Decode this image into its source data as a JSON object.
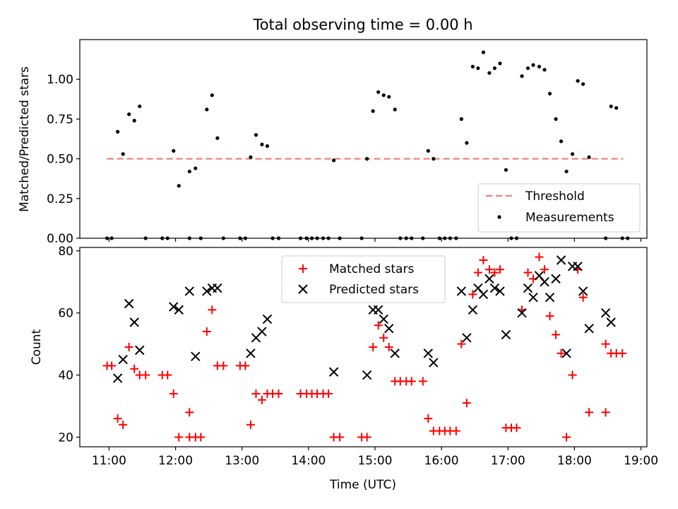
{
  "figure": {
    "title": "Total observing time = 0.00 h"
  },
  "chart_data": [
    {
      "type": "scatter",
      "ylabel": "Matched/Predicted stars",
      "xlabel": "",
      "xlim": [
        10.56,
        19.09
      ],
      "ylim": [
        0,
        1.25
      ],
      "x_ticks": [
        11,
        12,
        13,
        14,
        15,
        16,
        17,
        18,
        19
      ],
      "y_ticks": [
        0.0,
        0.25,
        0.5,
        0.75,
        1.0
      ],
      "y_tick_labels": [
        "0.00",
        "0.25",
        "0.50",
        "0.75",
        "1.00"
      ],
      "threshold": {
        "name": "Threshold",
        "value": 0.5,
        "x_range": [
          10.97,
          18.73
        ],
        "color": "#f08080"
      },
      "legend": {
        "placement": "lower-right",
        "entries": [
          "Threshold",
          "Measurements"
        ]
      },
      "series": [
        {
          "name": "Measurements",
          "marker": "dot",
          "color": "#000000",
          "points": [
            [
              10.97,
              0.0
            ],
            [
              11.04,
              0.0
            ],
            [
              11.13,
              0.67
            ],
            [
              11.21,
              0.53
            ],
            [
              11.3,
              0.78
            ],
            [
              11.38,
              0.74
            ],
            [
              11.46,
              0.83
            ],
            [
              11.55,
              0.0
            ],
            [
              11.8,
              0.0
            ],
            [
              11.88,
              0.0
            ],
            [
              11.97,
              0.55
            ],
            [
              12.05,
              0.33
            ],
            [
              12.21,
              0.42
            ],
            [
              12.3,
              0.44
            ],
            [
              12.21,
              0.0
            ],
            [
              12.38,
              0.0
            ],
            [
              12.47,
              0.81
            ],
            [
              12.55,
              0.9
            ],
            [
              12.63,
              0.63
            ],
            [
              12.72,
              0.0
            ],
            [
              12.97,
              0.0
            ],
            [
              13.05,
              0.0
            ],
            [
              13.13,
              0.51
            ],
            [
              13.21,
              0.65
            ],
            [
              13.3,
              0.59
            ],
            [
              13.38,
              0.58
            ],
            [
              13.46,
              0.0
            ],
            [
              13.55,
              0.0
            ],
            [
              13.88,
              0.0
            ],
            [
              13.97,
              0.0
            ],
            [
              14.05,
              0.0
            ],
            [
              14.13,
              0.0
            ],
            [
              14.22,
              0.0
            ],
            [
              14.3,
              0.0
            ],
            [
              14.38,
              0.49
            ],
            [
              14.47,
              0.0
            ],
            [
              14.8,
              0.0
            ],
            [
              14.88,
              0.5
            ],
            [
              14.97,
              0.8
            ],
            [
              15.05,
              0.92
            ],
            [
              15.13,
              0.9
            ],
            [
              15.21,
              0.89
            ],
            [
              15.3,
              0.81
            ],
            [
              15.38,
              0.0
            ],
            [
              15.47,
              0.0
            ],
            [
              15.55,
              0.0
            ],
            [
              15.72,
              0.0
            ],
            [
              15.8,
              0.55
            ],
            [
              15.88,
              0.5
            ],
            [
              15.97,
              0.0
            ],
            [
              16.05,
              0.0
            ],
            [
              16.13,
              0.0
            ],
            [
              16.22,
              0.0
            ],
            [
              16.3,
              0.75
            ],
            [
              16.38,
              0.6
            ],
            [
              16.47,
              1.08
            ],
            [
              16.55,
              1.07
            ],
            [
              16.63,
              1.17
            ],
            [
              16.72,
              1.04
            ],
            [
              16.8,
              1.07
            ],
            [
              16.88,
              1.1
            ],
            [
              16.97,
              0.43
            ],
            [
              17.05,
              0.0
            ],
            [
              17.13,
              0.0
            ],
            [
              17.21,
              1.02
            ],
            [
              17.3,
              1.07
            ],
            [
              17.38,
              1.09
            ],
            [
              17.47,
              1.08
            ],
            [
              17.55,
              1.06
            ],
            [
              17.63,
              0.91
            ],
            [
              17.72,
              0.75
            ],
            [
              17.8,
              0.61
            ],
            [
              17.88,
              0.42
            ],
            [
              17.97,
              0.53
            ],
            [
              18.05,
              0.99
            ],
            [
              18.13,
              0.97
            ],
            [
              18.22,
              0.51
            ],
            [
              18.47,
              0.0
            ],
            [
              18.55,
              0.83
            ],
            [
              18.63,
              0.82
            ],
            [
              18.72,
              0.0
            ],
            [
              18.8,
              0.0
            ]
          ]
        }
      ]
    },
    {
      "type": "scatter",
      "xlabel": "Time (UTC)",
      "ylabel": "Count",
      "xlim": [
        10.56,
        19.09
      ],
      "ylim": [
        16.9,
        81.1
      ],
      "x_ticks": [
        11,
        12,
        13,
        14,
        15,
        16,
        17,
        18,
        19
      ],
      "x_tick_labels": [
        "11:00",
        "12:00",
        "13:00",
        "14:00",
        "15:00",
        "16:00",
        "17:00",
        "18:00",
        "19:00"
      ],
      "y_ticks": [
        20,
        40,
        60,
        80
      ],
      "y_tick_labels": [
        "20",
        "40",
        "60",
        "80"
      ],
      "legend": {
        "placement": "top-center",
        "entries": [
          "Matched stars",
          "Predicted stars"
        ]
      },
      "series": [
        {
          "name": "Matched stars",
          "marker": "plus",
          "color": "#ff0000",
          "points": [
            [
              10.97,
              43
            ],
            [
              11.04,
              43
            ],
            [
              11.13,
              26
            ],
            [
              11.21,
              24
            ],
            [
              11.3,
              49
            ],
            [
              11.38,
              42
            ],
            [
              11.46,
              40
            ],
            [
              11.55,
              40
            ],
            [
              11.8,
              40
            ],
            [
              11.88,
              40
            ],
            [
              11.97,
              34
            ],
            [
              12.05,
              20
            ],
            [
              12.21,
              28
            ],
            [
              12.21,
              20
            ],
            [
              12.3,
              20
            ],
            [
              12.38,
              20
            ],
            [
              12.47,
              54
            ],
            [
              12.55,
              61
            ],
            [
              12.63,
              43
            ],
            [
              12.72,
              43
            ],
            [
              12.97,
              43
            ],
            [
              13.05,
              43
            ],
            [
              13.13,
              24
            ],
            [
              13.21,
              34
            ],
            [
              13.3,
              32
            ],
            [
              13.38,
              34
            ],
            [
              13.46,
              34
            ],
            [
              13.55,
              34
            ],
            [
              13.88,
              34
            ],
            [
              13.97,
              34
            ],
            [
              14.05,
              34
            ],
            [
              14.13,
              34
            ],
            [
              14.22,
              34
            ],
            [
              14.3,
              34
            ],
            [
              14.38,
              20
            ],
            [
              14.47,
              20
            ],
            [
              14.8,
              20
            ],
            [
              14.88,
              20
            ],
            [
              14.97,
              49
            ],
            [
              15.05,
              56
            ],
            [
              15.13,
              52
            ],
            [
              15.21,
              49
            ],
            [
              15.3,
              38
            ],
            [
              15.38,
              38
            ],
            [
              15.47,
              38
            ],
            [
              15.55,
              38
            ],
            [
              15.72,
              38
            ],
            [
              15.8,
              26
            ],
            [
              15.88,
              22
            ],
            [
              15.97,
              22
            ],
            [
              16.05,
              22
            ],
            [
              16.13,
              22
            ],
            [
              16.22,
              22
            ],
            [
              16.3,
              50
            ],
            [
              16.38,
              31
            ],
            [
              16.47,
              66
            ],
            [
              16.55,
              73
            ],
            [
              16.63,
              77
            ],
            [
              16.72,
              74
            ],
            [
              16.8,
              73
            ],
            [
              16.88,
              74
            ],
            [
              16.97,
              23
            ],
            [
              17.05,
              23
            ],
            [
              17.13,
              23
            ],
            [
              17.21,
              61
            ],
            [
              17.3,
              73
            ],
            [
              17.38,
              71
            ],
            [
              17.47,
              78
            ],
            [
              17.55,
              74
            ],
            [
              17.63,
              59
            ],
            [
              17.72,
              53
            ],
            [
              17.8,
              47
            ],
            [
              17.88,
              20
            ],
            [
              17.97,
              40
            ],
            [
              18.05,
              74
            ],
            [
              18.13,
              65
            ],
            [
              18.22,
              28
            ],
            [
              18.47,
              28
            ],
            [
              18.47,
              50
            ],
            [
              18.55,
              47
            ],
            [
              18.63,
              47
            ],
            [
              18.72,
              47
            ]
          ]
        },
        {
          "name": "Predicted stars",
          "marker": "x",
          "color": "#000000",
          "points": [
            [
              11.13,
              39
            ],
            [
              11.21,
              45
            ],
            [
              11.3,
              63
            ],
            [
              11.38,
              57
            ],
            [
              11.46,
              48
            ],
            [
              11.97,
              62
            ],
            [
              12.05,
              61
            ],
            [
              12.21,
              67
            ],
            [
              12.3,
              46
            ],
            [
              12.47,
              67
            ],
            [
              12.55,
              68
            ],
            [
              12.63,
              68
            ],
            [
              13.13,
              47
            ],
            [
              13.21,
              52
            ],
            [
              13.3,
              54
            ],
            [
              13.38,
              58
            ],
            [
              14.38,
              41
            ],
            [
              14.88,
              40
            ],
            [
              14.97,
              61
            ],
            [
              15.05,
              61
            ],
            [
              15.13,
              58
            ],
            [
              15.21,
              55
            ],
            [
              15.3,
              47
            ],
            [
              15.8,
              47
            ],
            [
              15.88,
              44
            ],
            [
              16.3,
              67
            ],
            [
              16.38,
              52
            ],
            [
              16.47,
              61
            ],
            [
              16.55,
              68
            ],
            [
              16.63,
              66
            ],
            [
              16.72,
              71
            ],
            [
              16.8,
              68
            ],
            [
              16.88,
              67
            ],
            [
              16.97,
              53
            ],
            [
              17.21,
              60
            ],
            [
              17.3,
              68
            ],
            [
              17.38,
              65
            ],
            [
              17.47,
              72
            ],
            [
              17.55,
              70
            ],
            [
              17.63,
              65
            ],
            [
              17.72,
              71
            ],
            [
              17.8,
              77
            ],
            [
              17.88,
              47
            ],
            [
              17.97,
              75
            ],
            [
              18.05,
              75
            ],
            [
              18.13,
              67
            ],
            [
              18.22,
              55
            ],
            [
              18.47,
              60
            ],
            [
              18.55,
              57
            ]
          ]
        }
      ]
    }
  ]
}
